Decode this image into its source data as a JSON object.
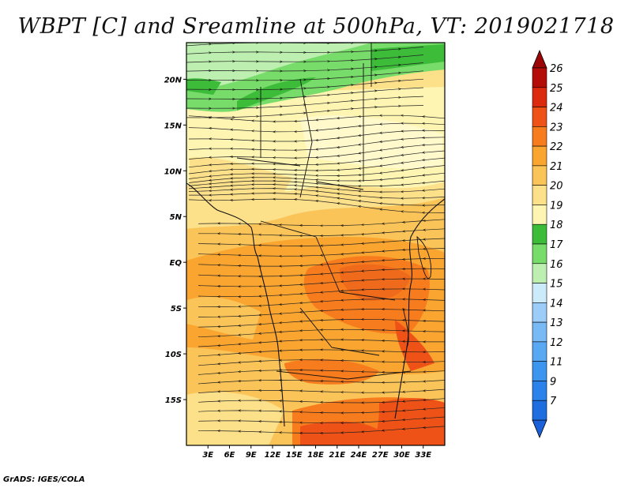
{
  "title": "WBPT [C] and Sreamline at 500hPa, VT: 2019021718",
  "credit": "GrADS: IGES/COLA",
  "map": {
    "lon_range": [
      0,
      36
    ],
    "lat_range": [
      -20,
      24
    ],
    "lon_ticks": [
      {
        "value": 3,
        "label": "3E"
      },
      {
        "value": 6,
        "label": "6E"
      },
      {
        "value": 9,
        "label": "9E"
      },
      {
        "value": 12,
        "label": "12E"
      },
      {
        "value": 15,
        "label": "15E"
      },
      {
        "value": 18,
        "label": "18E"
      },
      {
        "value": 21,
        "label": "21E"
      },
      {
        "value": 24,
        "label": "24E"
      },
      {
        "value": 27,
        "label": "27E"
      },
      {
        "value": 30,
        "label": "30E"
      },
      {
        "value": 33,
        "label": "33E"
      }
    ],
    "lat_ticks": [
      {
        "value": 20,
        "label": "20N"
      },
      {
        "value": 15,
        "label": "15N"
      },
      {
        "value": 10,
        "label": "10N"
      },
      {
        "value": 5,
        "label": "5N"
      },
      {
        "value": 0,
        "label": "EQ"
      },
      {
        "value": -5,
        "label": "5S"
      },
      {
        "value": -10,
        "label": "10S"
      },
      {
        "value": -15,
        "label": "15S"
      }
    ]
  },
  "colorbar": {
    "levels": [
      {
        "label": "7",
        "color": "#1e6ee0"
      },
      {
        "label": "9",
        "color": "#2a82ea"
      },
      {
        "label": "11",
        "color": "#3c96f0"
      },
      {
        "label": "12",
        "color": "#58a8f4"
      },
      {
        "label": "13",
        "color": "#78baf6"
      },
      {
        "label": "14",
        "color": "#9ccdf8"
      },
      {
        "label": "15",
        "color": "#ccebfa"
      },
      {
        "label": "16",
        "color": "#bdf0b0"
      },
      {
        "label": "17",
        "color": "#78dc6a"
      },
      {
        "label": "18",
        "color": "#3cbc38"
      },
      {
        "label": "19",
        "color": "#fff5b2"
      },
      {
        "label": "20",
        "color": "#fde08a"
      },
      {
        "label": "21",
        "color": "#fbc458"
      },
      {
        "label": "22",
        "color": "#f9a530"
      },
      {
        "label": "23",
        "color": "#f77c1e"
      },
      {
        "label": "24",
        "color": "#ef5216"
      },
      {
        "label": "25",
        "color": "#dc2a0e"
      },
      {
        "label": "26",
        "color": "#b40c06"
      }
    ],
    "low_color": "#1a60d8",
    "high_color": "#9a0606"
  }
}
